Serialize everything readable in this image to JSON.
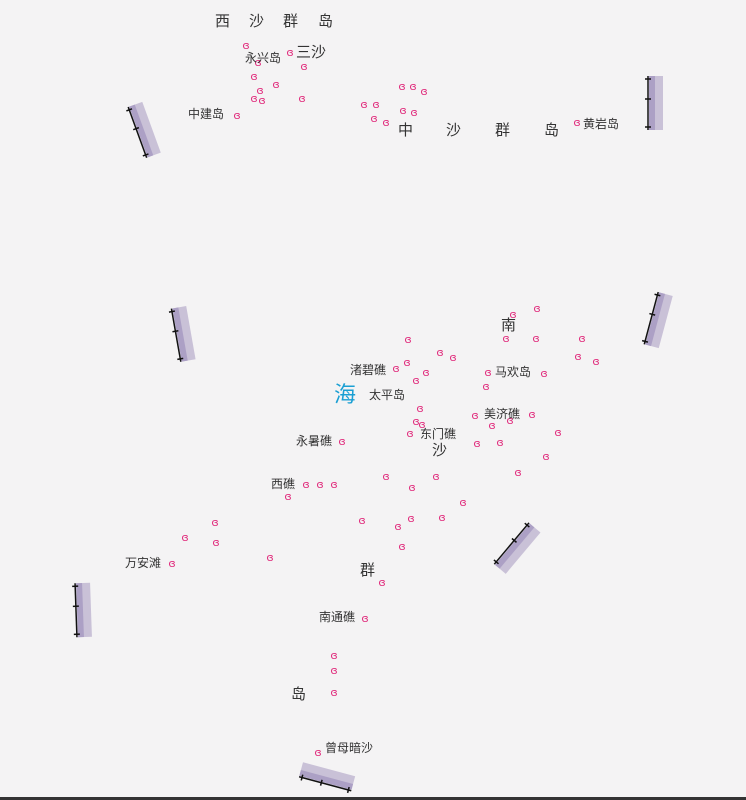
{
  "map": {
    "sea_name_chars": {
      "nan": "南",
      "hai": "海"
    },
    "archipelagos": {
      "xisha": {
        "chars": [
          "西",
          "沙",
          "群",
          "岛"
        ]
      },
      "zhongsha": {
        "chars": [
          "中",
          "沙",
          "群",
          "岛"
        ]
      },
      "nansha": {
        "chars": [
          "沙",
          "群",
          "岛"
        ]
      }
    },
    "city": "三沙",
    "places": {
      "yongxing": "永兴岛",
      "zhongjian": "中建岛",
      "huangyan": "黄岩岛",
      "zhubi": "渚碧礁",
      "taiping": "太平岛",
      "mahuan": "马欢岛",
      "meiji": "美济礁",
      "yongshu": "永暑礁",
      "dongmen": "东门礁",
      "xijiao": "西礁",
      "wanan": "万安滩",
      "nantong": "南通礁",
      "zengmu": "曾母暗沙"
    },
    "colors": {
      "reef": "#e0287a",
      "sea_label": "#1a9fd3",
      "boundary": "#a597c0",
      "boundary_dark": "#111111"
    },
    "icons": {
      "reef": "reef-icon",
      "boundary": "boundary-dash-icon"
    }
  }
}
